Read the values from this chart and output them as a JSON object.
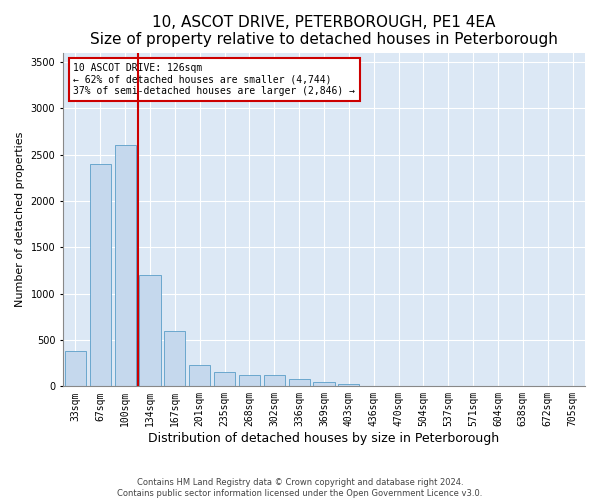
{
  "title": "10, ASCOT DRIVE, PETERBOROUGH, PE1 4EA",
  "subtitle": "Size of property relative to detached houses in Peterborough",
  "xlabel": "Distribution of detached houses by size in Peterborough",
  "ylabel": "Number of detached properties",
  "categories": [
    "33sqm",
    "67sqm",
    "100sqm",
    "134sqm",
    "167sqm",
    "201sqm",
    "235sqm",
    "268sqm",
    "302sqm",
    "336sqm",
    "369sqm",
    "403sqm",
    "436sqm",
    "470sqm",
    "504sqm",
    "537sqm",
    "571sqm",
    "604sqm",
    "638sqm",
    "672sqm",
    "705sqm"
  ],
  "values": [
    380,
    2400,
    2600,
    1200,
    600,
    230,
    150,
    120,
    120,
    80,
    50,
    30,
    0,
    0,
    0,
    0,
    0,
    0,
    0,
    0,
    0
  ],
  "bar_color": "#c5d8ed",
  "bar_edge_color": "#5a9ec8",
  "red_line_x": 2.5,
  "red_line_color": "#cc0000",
  "annotation_text": "10 ASCOT DRIVE: 126sqm\n← 62% of detached houses are smaller (4,744)\n37% of semi-detached houses are larger (2,846) →",
  "annotation_box_color": "#cc0000",
  "ylim": [
    0,
    3600
  ],
  "yticks": [
    0,
    500,
    1000,
    1500,
    2000,
    2500,
    3000,
    3500
  ],
  "background_color": "#dce8f5",
  "footer_line1": "Contains HM Land Registry data © Crown copyright and database right 2024.",
  "footer_line2": "Contains public sector information licensed under the Open Government Licence v3.0.",
  "title_fontsize": 11,
  "subtitle_fontsize": 9,
  "xlabel_fontsize": 9,
  "ylabel_fontsize": 8,
  "tick_fontsize": 7,
  "annotation_fontsize": 7
}
